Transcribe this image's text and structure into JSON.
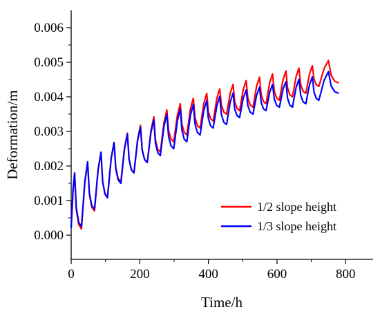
{
  "chart_data": {
    "type": "line",
    "title": "",
    "xlabel": "Time/h",
    "ylabel": "Deformation/m",
    "xlim": [
      0,
      880
    ],
    "ylim": [
      -0.0007,
      0.0065
    ],
    "xticks": [
      0,
      200,
      400,
      600,
      800
    ],
    "xtick_labels": [
      "0",
      "200",
      "400",
      "600",
      "800"
    ],
    "yticks": [
      0.0,
      0.001,
      0.002,
      0.003,
      0.004,
      0.005,
      0.006
    ],
    "ytick_labels": [
      "0.000",
      "0.001",
      "0.002",
      "0.003",
      "0.004",
      "0.005",
      "0.006"
    ],
    "grid": false,
    "legend_position": "bottom-right",
    "cycle_period_h": 38.5,
    "series": [
      {
        "name": "1/2 slope height",
        "color": "#ff0000",
        "peaks_t": [
          10,
          48,
          87,
          125,
          164,
          202,
          241,
          279,
          318,
          356,
          395,
          433,
          472,
          510,
          549,
          587,
          626,
          664,
          703,
          750
        ],
        "peaks_y": [
          0.00178,
          0.0021,
          0.00238,
          0.00268,
          0.00295,
          0.00318,
          0.00342,
          0.00362,
          0.0038,
          0.00396,
          0.0041,
          0.00423,
          0.00436,
          0.00447,
          0.00457,
          0.00466,
          0.00475,
          0.00483,
          0.0049,
          0.00505
        ],
        "troughs_t": [
          0,
          30,
          68,
          106,
          145,
          183,
          222,
          260,
          299,
          337,
          376,
          414,
          453,
          491,
          530,
          568,
          607,
          645,
          684,
          722,
          780
        ],
        "troughs_y": [
          0.0002,
          0.00018,
          0.0007,
          0.0011,
          0.00155,
          0.0018,
          0.0021,
          0.0024,
          0.0027,
          0.0029,
          0.0031,
          0.0033,
          0.0035,
          0.0036,
          0.0037,
          0.0038,
          0.0039,
          0.004,
          0.0041,
          0.0043,
          0.0044
        ]
      },
      {
        "name": "1/3 slope height",
        "color": "#0000ff",
        "peaks_t": [
          10,
          48,
          87,
          125,
          164,
          202,
          241,
          279,
          318,
          356,
          395,
          433,
          472,
          510,
          549,
          587,
          626,
          664,
          703,
          750
        ],
        "peaks_y": [
          0.0018,
          0.00212,
          0.0024,
          0.00268,
          0.00292,
          0.00312,
          0.00333,
          0.0035,
          0.00365,
          0.00378,
          0.0039,
          0.00401,
          0.00411,
          0.0042,
          0.00428,
          0.00436,
          0.00444,
          0.00451,
          0.00458,
          0.00473
        ],
        "troughs_t": [
          0,
          30,
          68,
          106,
          145,
          183,
          222,
          260,
          299,
          337,
          376,
          414,
          453,
          491,
          530,
          568,
          607,
          645,
          684,
          722,
          780
        ],
        "troughs_y": [
          0.0002,
          0.00025,
          0.00075,
          0.00108,
          0.0015,
          0.0018,
          0.0021,
          0.0023,
          0.0025,
          0.0027,
          0.0029,
          0.0031,
          0.0032,
          0.0034,
          0.0035,
          0.0036,
          0.0037,
          0.0037,
          0.0038,
          0.0039,
          0.0041
        ]
      }
    ]
  }
}
